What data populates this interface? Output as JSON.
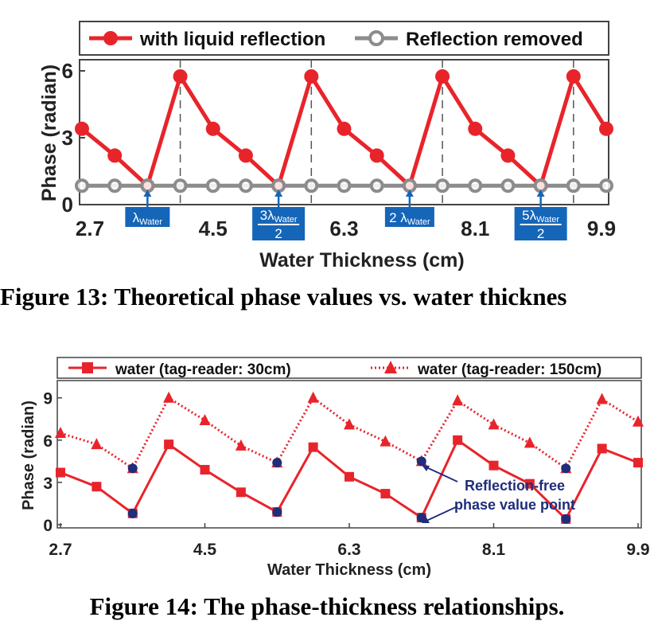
{
  "chart_data": [
    {
      "type": "line",
      "caption": "Figure 13: Theoretical phase values vs. water thicknes",
      "xlabel": "Water Thickness (cm)",
      "ylabel": "Phase (radian)",
      "xlim": [
        2.7,
        9.9
      ],
      "ylim": [
        0,
        6.5
      ],
      "xticks": [
        2.7,
        4.5,
        6.3,
        8.1,
        9.9
      ],
      "xtick_labels": [
        "2.7",
        "4.5",
        "6.3",
        "8.1",
        "9.9"
      ],
      "yticks": [
        0,
        3,
        6
      ],
      "ytick_labels": [
        "0",
        "3",
        "6"
      ],
      "legend_position": "top",
      "series": [
        {
          "name": "with liquid reflection",
          "color": "#e8242b",
          "marker": "circle-filled",
          "x": [
            2.7,
            3.15,
            3.6,
            4.05,
            4.5,
            4.95,
            5.4,
            5.85,
            6.3,
            6.75,
            7.2,
            7.65,
            8.1,
            8.55,
            9.0,
            9.45,
            9.9
          ],
          "y": [
            3.4,
            2.2,
            0.85,
            5.75,
            3.4,
            2.2,
            0.85,
            5.75,
            3.4,
            2.2,
            0.85,
            5.75,
            3.4,
            2.2,
            0.85,
            5.75,
            3.4
          ]
        },
        {
          "name": "Reflection removed",
          "color": "#8c8c8c",
          "marker": "circle-hollow",
          "x": [
            2.7,
            3.15,
            3.6,
            4.05,
            4.5,
            4.95,
            5.4,
            5.85,
            6.3,
            6.75,
            7.2,
            7.65,
            8.1,
            8.55,
            9.0,
            9.45,
            9.9
          ],
          "y": [
            0.85,
            0.85,
            0.85,
            0.85,
            0.85,
            0.85,
            0.85,
            0.85,
            0.85,
            0.85,
            0.85,
            0.85,
            0.85,
            0.85,
            0.85,
            0.85,
            0.85
          ]
        }
      ],
      "vertical_dashed_lines_x": [
        4.05,
        5.85,
        7.65,
        9.45
      ],
      "annotations": [
        {
          "x": 3.6,
          "main": "λ",
          "sub": "Water",
          "frac": false
        },
        {
          "x": 5.4,
          "main": "3λ",
          "sub": "Water",
          "den": "2",
          "frac": true
        },
        {
          "x": 7.2,
          "main": "2 λ",
          "sub": "Water",
          "frac": false
        },
        {
          "x": 9.0,
          "main": "5λ",
          "sub": "Water",
          "den": "2",
          "frac": true
        }
      ]
    },
    {
      "type": "line",
      "caption": "Figure 14: The phase-thickness relationships.",
      "xlabel": "Water Thickness (cm)",
      "ylabel": "Phase (radian)",
      "xlim": [
        2.7,
        9.9
      ],
      "ylim": [
        0,
        10
      ],
      "xticks": [
        2.7,
        4.5,
        6.3,
        8.1,
        9.9
      ],
      "xtick_labels": [
        "2.7",
        "4.5",
        "6.3",
        "8.1",
        "9.9"
      ],
      "yticks": [
        0,
        3,
        6,
        9
      ],
      "ytick_labels": [
        "0",
        "3",
        "6",
        "9"
      ],
      "legend_position": "top",
      "series": [
        {
          "name": "water (tag-reader: 30cm)",
          "color": "#e8242b",
          "style": "solid",
          "marker": "square",
          "x": [
            2.7,
            3.15,
            3.6,
            4.05,
            4.5,
            4.95,
            5.4,
            5.85,
            6.3,
            6.75,
            7.2,
            7.65,
            8.1,
            8.55,
            9.0,
            9.45,
            9.9
          ],
          "y": [
            3.7,
            2.7,
            0.8,
            5.7,
            3.9,
            2.3,
            0.9,
            5.5,
            3.4,
            2.2,
            0.5,
            6.0,
            4.2,
            2.9,
            0.4,
            5.4,
            4.4
          ]
        },
        {
          "name": "water (tag-reader: 150cm)",
          "color": "#e8242b",
          "style": "dotted",
          "marker": "triangle",
          "x": [
            2.7,
            3.15,
            3.6,
            4.05,
            4.5,
            4.95,
            5.4,
            5.85,
            6.3,
            6.75,
            7.2,
            7.65,
            8.1,
            8.55,
            9.0,
            9.45,
            9.9
          ],
          "y": [
            6.5,
            5.7,
            4.0,
            9.0,
            7.4,
            5.6,
            4.4,
            9.0,
            7.1,
            5.9,
            4.5,
            8.8,
            7.1,
            5.8,
            4.0,
            8.9,
            7.3
          ]
        }
      ],
      "highlight_points": [
        {
          "x": 3.6,
          "y": 4.0
        },
        {
          "x": 5.4,
          "y": 4.4
        },
        {
          "x": 7.2,
          "y": 4.5
        },
        {
          "x": 9.0,
          "y": 4.0
        },
        {
          "x": 3.6,
          "y": 0.8
        },
        {
          "x": 5.4,
          "y": 0.9
        },
        {
          "x": 7.2,
          "y": 0.5
        },
        {
          "x": 9.0,
          "y": 0.4
        }
      ],
      "highlight_color": "#1f2d7a",
      "annotation": {
        "line1": "Reflection-free",
        "line2": "phase value point"
      }
    }
  ]
}
